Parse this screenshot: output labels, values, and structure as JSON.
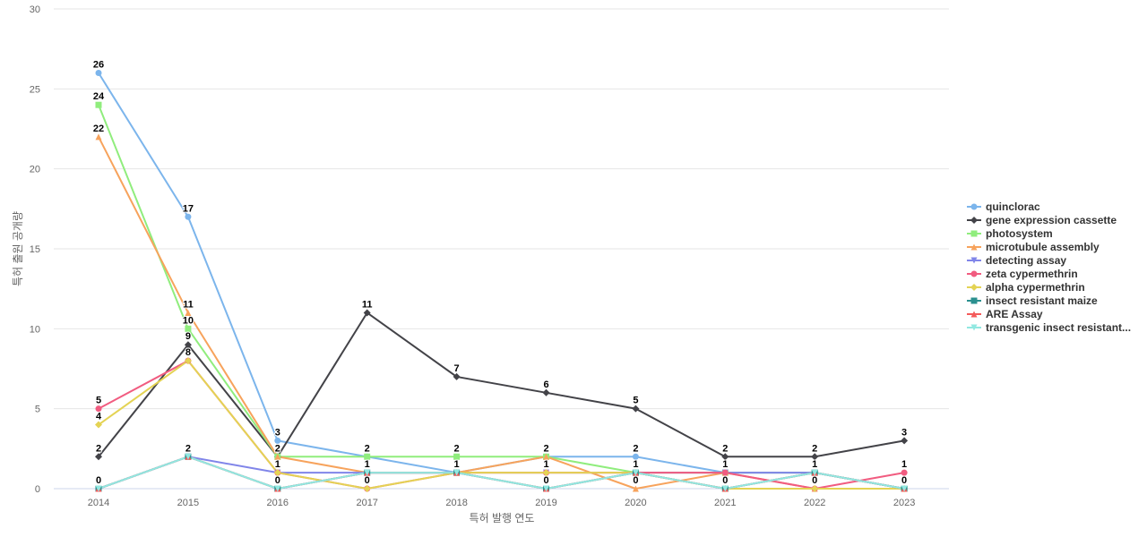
{
  "chart_data": {
    "type": "line",
    "xlabel": "특허 발행 연도",
    "ylabel": "특허 출원 공개량",
    "x": [
      "2014",
      "2015",
      "2016",
      "2017",
      "2018",
      "2019",
      "2020",
      "2021",
      "2022",
      "2023"
    ],
    "ylim": [
      0,
      30
    ],
    "yticks": [
      0,
      5,
      10,
      15,
      20,
      25,
      30
    ],
    "grid": true,
    "legend_position": "right",
    "data_labels": [
      {
        "x": "2014",
        "y": 26,
        "text": "26"
      },
      {
        "x": "2014",
        "y": 24,
        "text": "24"
      },
      {
        "x": "2014",
        "y": 22,
        "text": "22"
      },
      {
        "x": "2014",
        "y": 5,
        "text": "5"
      },
      {
        "x": "2014",
        "y": 4,
        "text": "4"
      },
      {
        "x": "2014",
        "y": 2,
        "text": "2"
      },
      {
        "x": "2014",
        "y": 0,
        "text": "0"
      },
      {
        "x": "2015",
        "y": 17,
        "text": "17"
      },
      {
        "x": "2015",
        "y": 11,
        "text": "11"
      },
      {
        "x": "2015",
        "y": 10,
        "text": "10"
      },
      {
        "x": "2015",
        "y": 9,
        "text": "9"
      },
      {
        "x": "2015",
        "y": 8,
        "text": "8"
      },
      {
        "x": "2015",
        "y": 2,
        "text": "2"
      },
      {
        "x": "2016",
        "y": 3,
        "text": "3"
      },
      {
        "x": "2016",
        "y": 2,
        "text": "2"
      },
      {
        "x": "2016",
        "y": 1,
        "text": "1"
      },
      {
        "x": "2016",
        "y": 0,
        "text": "0"
      },
      {
        "x": "2017",
        "y": 11,
        "text": "11"
      },
      {
        "x": "2017",
        "y": 2,
        "text": "2"
      },
      {
        "x": "2017",
        "y": 1,
        "text": "1"
      },
      {
        "x": "2017",
        "y": 0,
        "text": "0"
      },
      {
        "x": "2018",
        "y": 7,
        "text": "7"
      },
      {
        "x": "2018",
        "y": 2,
        "text": "2"
      },
      {
        "x": "2018",
        "y": 1,
        "text": "1"
      },
      {
        "x": "2019",
        "y": 6,
        "text": "6"
      },
      {
        "x": "2019",
        "y": 2,
        "text": "2"
      },
      {
        "x": "2019",
        "y": 1,
        "text": "1"
      },
      {
        "x": "2019",
        "y": 0,
        "text": "0"
      },
      {
        "x": "2020",
        "y": 5,
        "text": "5"
      },
      {
        "x": "2020",
        "y": 2,
        "text": "2"
      },
      {
        "x": "2020",
        "y": 1,
        "text": "1"
      },
      {
        "x": "2020",
        "y": 0,
        "text": "0"
      },
      {
        "x": "2021",
        "y": 2,
        "text": "2"
      },
      {
        "x": "2021",
        "y": 1,
        "text": "1"
      },
      {
        "x": "2021",
        "y": 0,
        "text": "0"
      },
      {
        "x": "2022",
        "y": 2,
        "text": "2"
      },
      {
        "x": "2022",
        "y": 1,
        "text": "1"
      },
      {
        "x": "2022",
        "y": 0,
        "text": "0"
      },
      {
        "x": "2023",
        "y": 3,
        "text": "3"
      },
      {
        "x": "2023",
        "y": 1,
        "text": "1"
      },
      {
        "x": "2023",
        "y": 0,
        "text": "0"
      }
    ],
    "series": [
      {
        "name": "quinclorac",
        "color": "#7cb5ec",
        "marker": "circle",
        "values": [
          26,
          17,
          3,
          2,
          1,
          2,
          2,
          1,
          1,
          0
        ]
      },
      {
        "name": "gene expression cassette",
        "color": "#434348",
        "marker": "diamond",
        "values": [
          2,
          9,
          2,
          11,
          7,
          6,
          5,
          2,
          2,
          3
        ]
      },
      {
        "name": "photosystem",
        "color": "#90ed7d",
        "marker": "square",
        "values": [
          24,
          10,
          2,
          2,
          2,
          2,
          1,
          1,
          1,
          0
        ]
      },
      {
        "name": "microtubule assembly",
        "color": "#f7a35c",
        "marker": "triangle",
        "values": [
          22,
          11,
          2,
          1,
          1,
          2,
          0,
          1,
          0,
          0
        ]
      },
      {
        "name": "detecting assay",
        "color": "#8085e9",
        "marker": "triangle-down",
        "values": [
          0,
          2,
          1,
          1,
          1,
          1,
          1,
          1,
          1,
          0
        ]
      },
      {
        "name": "zeta cypermethrin",
        "color": "#f15c80",
        "marker": "circle",
        "values": [
          5,
          8,
          1,
          0,
          1,
          1,
          1,
          1,
          0,
          1
        ]
      },
      {
        "name": "alpha cypermethrin",
        "color": "#e4d354",
        "marker": "diamond",
        "values": [
          4,
          8,
          1,
          0,
          1,
          1,
          1,
          0,
          0,
          0
        ]
      },
      {
        "name": "insect resistant maize",
        "color": "#2b908f",
        "marker": "square",
        "values": [
          0,
          2,
          0,
          1,
          1,
          0,
          1,
          0,
          1,
          0
        ]
      },
      {
        "name": "ARE Assay",
        "color": "#f45b5b",
        "marker": "triangle",
        "values": [
          0,
          2,
          0,
          1,
          1,
          0,
          1,
          0,
          1,
          0
        ]
      },
      {
        "name": "transgenic insect resistant...",
        "color": "#91e8e1",
        "marker": "triangle-down",
        "values": [
          0,
          2,
          0,
          1,
          1,
          0,
          1,
          0,
          1,
          0
        ]
      }
    ]
  }
}
